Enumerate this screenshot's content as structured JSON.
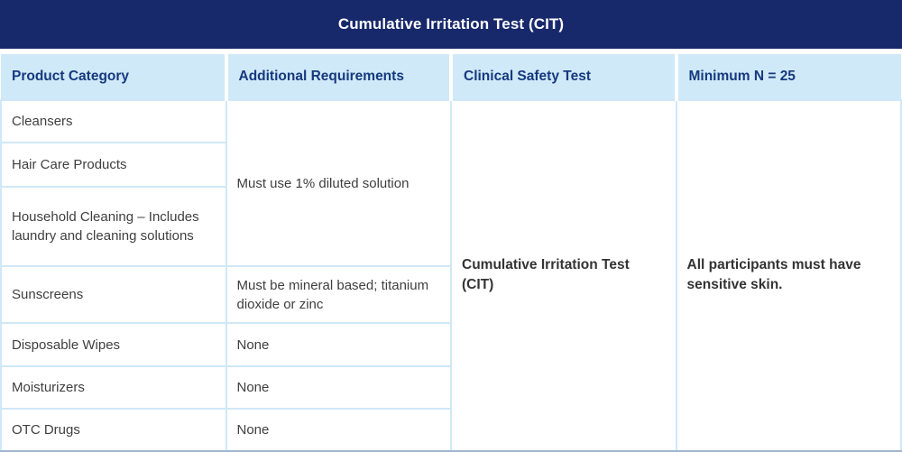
{
  "title": "Cumulative Irritation Test (CIT)",
  "columns": {
    "product_category": "Product Category",
    "additional_requirements": "Additional Requirements",
    "clinical_safety_test": "Clinical Safety Test",
    "minimum_n": "Minimum N = 25"
  },
  "rows": [
    {
      "category": "Cleansers"
    },
    {
      "category": "Hair Care Products"
    },
    {
      "category": "Household Cleaning – Includes laundry and cleaning solutions"
    },
    {
      "category": "Sunscreens",
      "requirement": "Must be mineral based; titanium dioxide or zinc"
    },
    {
      "category": "Disposable Wipes",
      "requirement": "None"
    },
    {
      "category": "Moisturizers",
      "requirement": "None"
    },
    {
      "category": "OTC Drugs",
      "requirement": "None"
    }
  ],
  "merged": {
    "requirement_rows_1_to_3": "Must use 1% diluted solution",
    "clinical_safety_test": "Cumulative Irritation Test (CIT)",
    "minimum_n_note": "All participants must have sensitive skin."
  },
  "colors": {
    "title_bar_navy": "#17286b",
    "header_background": "#cfe9f8",
    "header_text": "#16397e",
    "cell_border": "#cfe8f7",
    "outer_bottom_border": "#9fb6cd",
    "body_text": "#3f3f3f"
  }
}
